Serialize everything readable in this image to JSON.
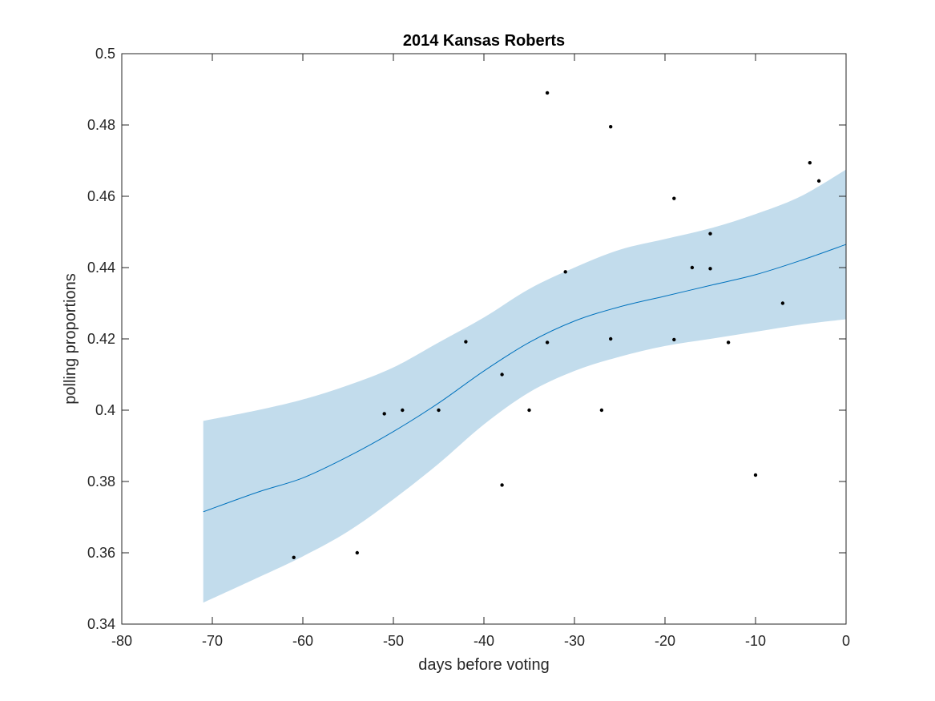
{
  "chart_data": {
    "type": "line",
    "title": "2014 Kansas Roberts",
    "xlabel": "days before voting",
    "ylabel": "polling proportions",
    "xlim": [
      -80,
      0
    ],
    "ylim": [
      0.34,
      0.5
    ],
    "xticks": [
      -80,
      -70,
      -60,
      -50,
      -40,
      -30,
      -20,
      -10,
      0
    ],
    "yticks": [
      0.34,
      0.36,
      0.38,
      0.4,
      0.42,
      0.44,
      0.46,
      0.48,
      0.5
    ],
    "xtick_labels": [
      "-80",
      "-70",
      "-60",
      "-50",
      "-40",
      "-30",
      "-20",
      "-10",
      "0"
    ],
    "ytick_labels": [
      "0.34",
      "0.36",
      "0.38",
      "0.4",
      "0.42",
      "0.44",
      "0.46",
      "0.48",
      "0.5"
    ],
    "grid": false,
    "colors": {
      "fit_line": "#0072BD",
      "band_fill": "#c2dcec",
      "points": "#000000",
      "axes": "#262626"
    },
    "fit": {
      "x": [
        -71,
        -65,
        -60,
        -55,
        -50,
        -45,
        -40,
        -35,
        -30,
        -25,
        -20,
        -15,
        -10,
        -5,
        0
      ],
      "mean": [
        0.3715,
        0.377,
        0.381,
        0.387,
        0.394,
        0.402,
        0.411,
        0.419,
        0.425,
        0.429,
        0.432,
        0.435,
        0.438,
        0.442,
        0.4465
      ],
      "upper": [
        0.397,
        0.4,
        0.403,
        0.407,
        0.412,
        0.419,
        0.426,
        0.434,
        0.44,
        0.445,
        0.448,
        0.451,
        0.455,
        0.46,
        0.4675
      ],
      "lower": [
        0.346,
        0.353,
        0.359,
        0.366,
        0.375,
        0.385,
        0.396,
        0.405,
        0.411,
        0.415,
        0.418,
        0.42,
        0.422,
        0.424,
        0.4255
      ]
    },
    "points": [
      {
        "x": -61,
        "y": 0.3587
      },
      {
        "x": -54,
        "y": 0.36
      },
      {
        "x": -51,
        "y": 0.399
      },
      {
        "x": -49,
        "y": 0.4
      },
      {
        "x": -45,
        "y": 0.4
      },
      {
        "x": -42,
        "y": 0.4192
      },
      {
        "x": -38,
        "y": 0.41
      },
      {
        "x": -38,
        "y": 0.379
      },
      {
        "x": -35,
        "y": 0.4
      },
      {
        "x": -33,
        "y": 0.419
      },
      {
        "x": -33,
        "y": 0.489
      },
      {
        "x": -31,
        "y": 0.4388
      },
      {
        "x": -27,
        "y": 0.4
      },
      {
        "x": -26,
        "y": 0.4795
      },
      {
        "x": -26,
        "y": 0.42
      },
      {
        "x": -19,
        "y": 0.4594
      },
      {
        "x": -19,
        "y": 0.4198
      },
      {
        "x": -17,
        "y": 0.44
      },
      {
        "x": -15,
        "y": 0.4495
      },
      {
        "x": -15,
        "y": 0.4397
      },
      {
        "x": -13,
        "y": 0.419
      },
      {
        "x": -10,
        "y": 0.3818
      },
      {
        "x": -7,
        "y": 0.43
      },
      {
        "x": -4,
        "y": 0.4694
      },
      {
        "x": -3,
        "y": 0.4643
      }
    ]
  }
}
